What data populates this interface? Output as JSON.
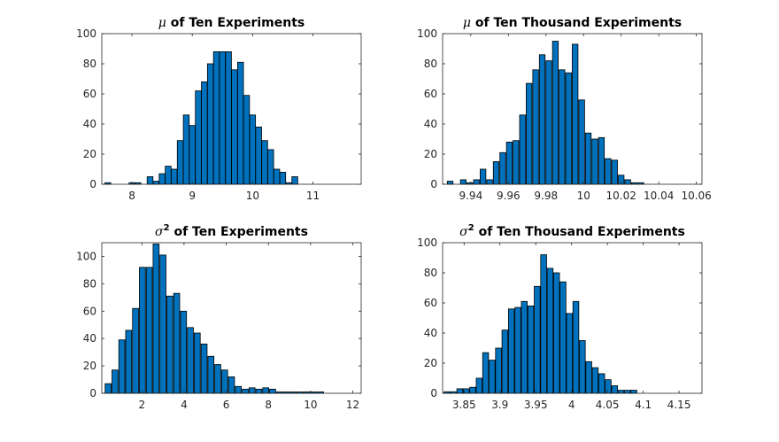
{
  "colors": {
    "bar_fill": "#0072BD",
    "bar_edge": "#000000",
    "axis": "#262626"
  },
  "chart_data": [
    {
      "type": "bar",
      "title": {
        "symbol": "μ",
        "sup": "",
        "text": " of Ten Experiments"
      },
      "xlim": [
        7.5,
        11.8
      ],
      "ylim": [
        0,
        100
      ],
      "xticks": [
        8,
        9,
        10,
        11
      ],
      "yticks": [
        0,
        20,
        40,
        60,
        80,
        100
      ],
      "bar_width": 0.097,
      "x": [
        7.6,
        7.7,
        7.8,
        7.9,
        8.0,
        8.1,
        8.2,
        8.3,
        8.4,
        8.5,
        8.6,
        8.7,
        8.8,
        8.9,
        9.0,
        9.1,
        9.2,
        9.3,
        9.4,
        9.5,
        9.6,
        9.7,
        9.8,
        9.9,
        10.0,
        10.1,
        10.2,
        10.3,
        10.4,
        10.5,
        10.6,
        10.7,
        10.8,
        10.9,
        11.0,
        11.1,
        11.2,
        11.3,
        11.4,
        11.5,
        11.6,
        11.7
      ],
      "values": [
        1,
        0,
        0,
        0,
        1,
        1,
        0,
        5,
        2,
        7,
        12,
        10,
        29,
        46,
        39,
        62,
        68,
        80,
        88,
        88,
        88,
        76,
        81,
        59,
        46,
        38,
        29,
        23,
        10,
        8,
        1,
        5,
        0,
        0,
        0,
        0,
        0,
        0,
        0,
        0,
        0,
        0
      ]
    },
    {
      "type": "bar",
      "title": {
        "symbol": "μ",
        "sup": "",
        "text": " of Ten Thousand Experiments"
      },
      "xlim": [
        9.925,
        10.063
      ],
      "ylim": [
        0,
        100
      ],
      "xticks": [
        9.94,
        9.96,
        9.98,
        10,
        10.02,
        10.04,
        10.06
      ],
      "yticks": [
        0,
        20,
        40,
        60,
        80,
        100
      ],
      "bar_width": 0.00305,
      "x": [
        9.929,
        9.9325,
        9.936,
        9.9395,
        9.943,
        9.9465,
        9.95,
        9.9535,
        9.957,
        9.9605,
        9.964,
        9.9675,
        9.971,
        9.9745,
        9.978,
        9.9815,
        9.985,
        9.9885,
        9.992,
        9.9955,
        9.999,
        10.0025,
        10.006,
        10.0095,
        10.013,
        10.0165,
        10.02,
        10.0235,
        10.027,
        10.0305,
        10.034,
        10.0375,
        10.041,
        10.0445,
        10.048,
        10.0515,
        10.055,
        10.0585
      ],
      "values": [
        2,
        0,
        3,
        1,
        3,
        10,
        3,
        15,
        21,
        28,
        29,
        46,
        67,
        76,
        86,
        82,
        95,
        76,
        74,
        93,
        56,
        34,
        30,
        31,
        17,
        16,
        6,
        3,
        1,
        1,
        0,
        0,
        0,
        0,
        0,
        0,
        0,
        0
      ]
    },
    {
      "type": "bar",
      "title": {
        "symbol": "σ",
        "sup": "2",
        "text": " of Ten Experiments"
      },
      "xlim": [
        0.1,
        12.4
      ],
      "ylim": [
        0,
        110
      ],
      "xticks": [
        2,
        4,
        6,
        8,
        10,
        12
      ],
      "yticks": [
        0,
        20,
        40,
        60,
        80,
        100
      ],
      "bar_width": 0.285,
      "x": [
        0.4,
        0.725,
        1.05,
        1.375,
        1.7,
        2.025,
        2.35,
        2.675,
        3.0,
        3.325,
        3.65,
        3.975,
        4.3,
        4.625,
        4.95,
        5.275,
        5.6,
        5.925,
        6.25,
        6.575,
        6.9,
        7.225,
        7.55,
        7.875,
        8.2,
        8.525,
        8.85,
        9.175,
        9.5,
        9.825,
        10.15,
        10.475,
        10.8,
        11.125,
        11.45,
        11.775,
        12.1
      ],
      "values": [
        7,
        17,
        39,
        46,
        62,
        92,
        92,
        109,
        101,
        71,
        73,
        60,
        48,
        44,
        36,
        27,
        21,
        17,
        12,
        5,
        3,
        4,
        3,
        4,
        3,
        1,
        1,
        1,
        1,
        1,
        1,
        1,
        0,
        0,
        0,
        0,
        0
      ]
    },
    {
      "type": "bar",
      "title": {
        "symbol": "σ",
        "sup": "2",
        "text": " of Ten Thousand Experiments"
      },
      "xlim": [
        3.82,
        4.182
      ],
      "ylim": [
        0,
        100
      ],
      "xticks": [
        3.85,
        3.9,
        3.95,
        4,
        4.05,
        4.1,
        4.15
      ],
      "yticks": [
        0,
        20,
        40,
        60,
        80,
        100
      ],
      "bar_width": 0.0082,
      "x": [
        3.826,
        3.835,
        3.844,
        3.853,
        3.862,
        3.871,
        3.88,
        3.889,
        3.898,
        3.907,
        3.916,
        3.925,
        3.934,
        3.943,
        3.952,
        3.961,
        3.97,
        3.979,
        3.988,
        3.997,
        4.006,
        4.015,
        4.024,
        4.033,
        4.042,
        4.051,
        4.06,
        4.069,
        4.078,
        4.087,
        4.096,
        4.105,
        4.114,
        4.123,
        4.132,
        4.141,
        4.15,
        4.159,
        4.168,
        4.177
      ],
      "values": [
        1,
        1,
        3,
        3,
        4,
        10,
        27,
        22,
        30,
        42,
        56,
        57,
        61,
        58,
        71,
        92,
        83,
        80,
        74,
        53,
        61,
        35,
        21,
        17,
        13,
        9,
        5,
        2,
        2,
        2,
        0,
        0,
        0,
        0,
        0,
        0,
        0,
        0,
        0,
        0
      ]
    }
  ]
}
